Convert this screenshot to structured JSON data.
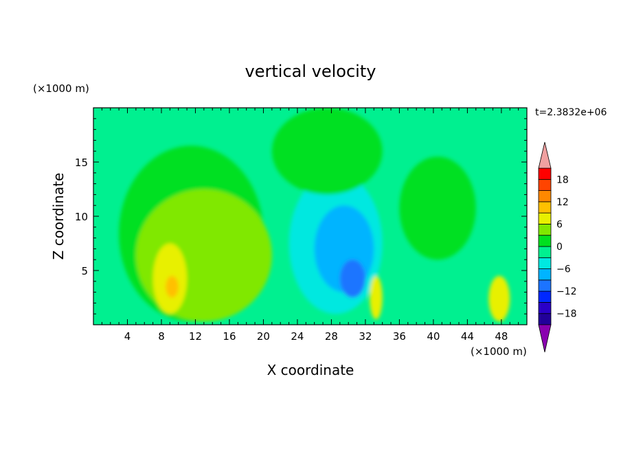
{
  "chart_data": {
    "type": "heatmap",
    "title": "vertical velocity",
    "xlabel": "X coordinate",
    "ylabel": "Z coordinate",
    "x_unit": "(×1000 m)",
    "y_unit": "(×1000 m)",
    "time_label": "t=2.3832e+06",
    "xlim": [
      0,
      51
    ],
    "ylim": [
      0,
      20
    ],
    "xticks": [
      4,
      8,
      12,
      16,
      20,
      24,
      28,
      32,
      36,
      40,
      44,
      48
    ],
    "xtick_labels": [
      "4",
      "8",
      "12",
      "16",
      "20",
      "24",
      "28",
      "32",
      "36",
      "40",
      "44",
      "48"
    ],
    "yticks": [
      5,
      10,
      15
    ],
    "ytick_labels": [
      "5",
      "10",
      "15"
    ],
    "colorbar": {
      "levels": [
        -21,
        -18,
        -15,
        -12,
        -9,
        -6,
        -3,
        0,
        3,
        6,
        9,
        12,
        15,
        18,
        21
      ],
      "colors": [
        "#4b0082",
        "#22009a",
        "#2a00c8",
        "#0028ff",
        "#1c74ff",
        "#00b4ff",
        "#00e8e0",
        "#00f090",
        "#00e020",
        "#80e800",
        "#e8f000",
        "#ffc000",
        "#ff8800",
        "#ff4400",
        "#ff0000",
        "#f0a0a0"
      ],
      "under_color": "#8a00b0",
      "over_color": "#f0a0a0",
      "tick_values": [
        18,
        12,
        6,
        0,
        -6,
        -12,
        -18
      ],
      "tick_labels": [
        "18",
        "12",
        "6",
        "0",
        "−6",
        "−12",
        "−18"
      ]
    },
    "features": [
      {
        "label": "background",
        "value": -1,
        "color": "#00f090"
      },
      {
        "label": "updraft-left-outer",
        "x": [
          3,
          20
        ],
        "z": [
          0.3,
          16.5
        ],
        "value": 1.5,
        "color": "#00e020"
      },
      {
        "label": "updraft-left-mid",
        "x": [
          5,
          21
        ],
        "z": [
          0.3,
          12.5
        ],
        "value": 4.5,
        "color": "#80e800"
      },
      {
        "label": "updraft-left-core",
        "x": [
          7,
          11
        ],
        "z": [
          1,
          7.5
        ],
        "value": 7.5,
        "color": "#e8f000"
      },
      {
        "label": "updraft-left-max",
        "x": [
          8.5,
          10
        ],
        "z": [
          2.5,
          4.5
        ],
        "value": 10.5,
        "color": "#ffc000"
      },
      {
        "label": "downdraft-center",
        "x": [
          23,
          34
        ],
        "z": [
          1,
          14
        ],
        "value": -4.5,
        "color": "#00e8e0"
      },
      {
        "label": "downdraft-center-inner",
        "x": [
          26,
          33
        ],
        "z": [
          3,
          11
        ],
        "value": -7.5,
        "color": "#00b4ff"
      },
      {
        "label": "downdraft-center-core",
        "x": [
          29,
          32
        ],
        "z": [
          2.5,
          6
        ],
        "value": -10.5,
        "color": "#1c74ff"
      },
      {
        "label": "updraft-upper-center",
        "x": [
          21,
          34
        ],
        "z": [
          12,
          20
        ],
        "value": 1.5,
        "color": "#00e020"
      },
      {
        "label": "updraft-right",
        "x": [
          36,
          45
        ],
        "z": [
          6,
          15.5
        ],
        "value": 1.5,
        "color": "#00e020"
      },
      {
        "label": "updraft-right-low",
        "x": [
          46.5,
          49
        ],
        "z": [
          0.3,
          4.5
        ],
        "value": 7.5,
        "color": "#e8f000"
      },
      {
        "label": "updraft-x33",
        "x": [
          32.5,
          34
        ],
        "z": [
          0.5,
          4.5
        ],
        "value": 6,
        "color": "#e8f000"
      }
    ]
  }
}
